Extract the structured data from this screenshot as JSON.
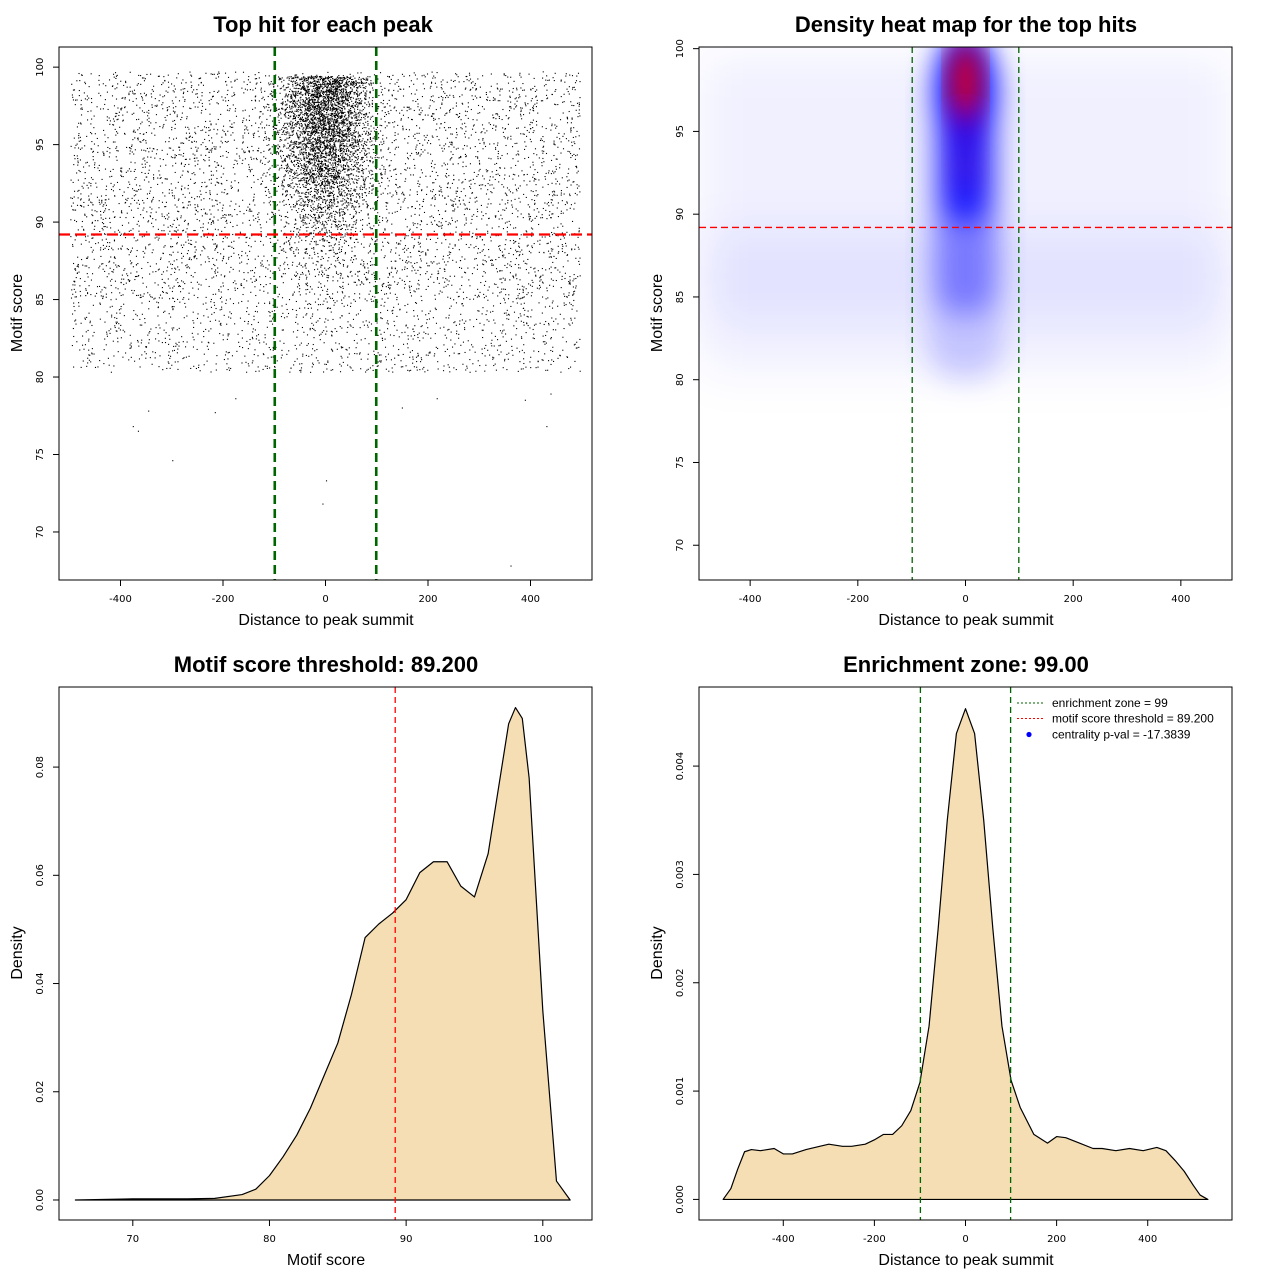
{
  "chart_data": [
    {
      "type": "scatter",
      "title": "Top hit for each peak",
      "xlabel": "Distance to peak summit",
      "ylabel": "Motif score",
      "xlim": [
        -520,
        520
      ],
      "ylim": [
        66.9,
        101.3
      ],
      "xticks": [
        -400,
        -200,
        0,
        200,
        400
      ],
      "xtick_labels": [
        "-400",
        "-200",
        "0",
        "200",
        "400"
      ],
      "yticks": [
        70,
        75,
        80,
        85,
        90,
        95,
        100
      ],
      "ytick_labels": [
        "70",
        "75",
        "80",
        "85",
        "90",
        "95",
        "100"
      ],
      "vlines": [
        -99,
        99
      ],
      "hline": 89.2,
      "vline_color": "#006400",
      "hline_color": "#ff0000",
      "point_color": "#000000",
      "n_points_approx": 9500,
      "outliers": [
        {
          "x": -375,
          "y": 76.8
        },
        {
          "x": -365,
          "y": 76.5
        },
        {
          "x": -345,
          "y": 77.8
        },
        {
          "x": -298,
          "y": 74.6
        },
        {
          "x": -215,
          "y": 77.7
        },
        {
          "x": -175,
          "y": 78.6
        },
        {
          "x": -5,
          "y": 71.8
        },
        {
          "x": 2,
          "y": 73.3
        },
        {
          "x": 150,
          "y": 78.0
        },
        {
          "x": 218,
          "y": 78.6
        },
        {
          "x": 362,
          "y": 67.8
        },
        {
          "x": 390,
          "y": 78.5
        },
        {
          "x": 432,
          "y": 76.8
        },
        {
          "x": 440,
          "y": 78.9
        }
      ]
    },
    {
      "type": "heatmap",
      "title": "Density heat map for the top hits",
      "xlabel": "Distance to peak summit",
      "ylabel": "Motif score",
      "xlim": [
        -495,
        495
      ],
      "ylim": [
        67.9,
        100.1
      ],
      "xticks": [
        -400,
        -200,
        0,
        200,
        400
      ],
      "xtick_labels": [
        "-400",
        "-200",
        "0",
        "200",
        "400"
      ],
      "yticks": [
        70,
        75,
        80,
        85,
        90,
        95,
        100
      ],
      "ytick_labels": [
        "70",
        "75",
        "80",
        "85",
        "90",
        "95",
        "100"
      ],
      "vlines": [
        -99,
        99
      ],
      "hline": 89.2,
      "colors": [
        "#ffffff",
        "#0000ff",
        "#ff0000"
      ],
      "density_peak": {
        "x": 0,
        "y": 98
      }
    },
    {
      "type": "area",
      "title": "Motif score threshold: 89.200",
      "xlabel": "Motif score",
      "ylabel": "Density",
      "xlim": [
        64.6,
        103.6
      ],
      "ylim": [
        -0.0037,
        0.0948
      ],
      "xticks": [
        70,
        80,
        90,
        100
      ],
      "xtick_labels": [
        "70",
        "80",
        "90",
        "100"
      ],
      "yticks": [
        0,
        0.02,
        0.04,
        0.06,
        0.08
      ],
      "ytick_labels": [
        "0.00",
        "0.02",
        "0.04",
        "0.06",
        "0.08"
      ],
      "vline": 89.2,
      "vline_color": "#ff0000",
      "fill": "#f5deb3",
      "x": [
        65.8,
        70,
        74,
        76,
        78,
        79,
        80,
        81,
        82,
        83,
        84,
        85,
        86,
        87,
        88,
        89,
        90,
        91,
        92,
        93,
        94,
        95,
        96,
        97,
        97.5,
        98,
        98.5,
        99,
        100,
        101,
        102
      ],
      "y": [
        0,
        0.0002,
        0.0002,
        0.0003,
        0.001,
        0.002,
        0.0045,
        0.008,
        0.012,
        0.017,
        0.023,
        0.029,
        0.038,
        0.0485,
        0.051,
        0.053,
        0.0555,
        0.0605,
        0.0625,
        0.0625,
        0.058,
        0.056,
        0.064,
        0.08,
        0.088,
        0.091,
        0.089,
        0.078,
        0.035,
        0.0035,
        0
      ]
    },
    {
      "type": "area",
      "title": "Enrichment zone: 99.00",
      "xlabel": "Distance to peak summit",
      "ylabel": "Density",
      "xlim": [
        -585,
        585
      ],
      "ylim": [
        -0.00019,
        0.00473
      ],
      "xticks": [
        -400,
        -200,
        0,
        200,
        400
      ],
      "xtick_labels": [
        "-400",
        "-200",
        "0",
        "200",
        "400"
      ],
      "yticks": [
        0,
        0.001,
        0.002,
        0.003,
        0.004
      ],
      "ytick_labels": [
        "0.000",
        "0.001",
        "0.002",
        "0.003",
        "0.004"
      ],
      "vlines": [
        -99,
        99
      ],
      "fill": "#f5deb3",
      "x": [
        -532,
        -515,
        -500,
        -485,
        -470,
        -450,
        -420,
        -400,
        -380,
        -350,
        -320,
        -300,
        -270,
        -250,
        -220,
        -200,
        -180,
        -160,
        -140,
        -120,
        -100,
        -80,
        -60,
        -40,
        -20,
        0,
        20,
        40,
        60,
        80,
        100,
        120,
        150,
        180,
        200,
        220,
        250,
        280,
        300,
        330,
        360,
        390,
        420,
        440,
        460,
        480,
        500,
        515,
        532
      ],
      "y": [
        0,
        0.0001,
        0.00028,
        0.00044,
        0.00046,
        0.00045,
        0.00047,
        0.00042,
        0.00042,
        0.00046,
        0.00049,
        0.00051,
        0.00049,
        0.00049,
        0.00051,
        0.00055,
        0.0006,
        0.0006,
        0.00068,
        0.00082,
        0.00108,
        0.0016,
        0.0025,
        0.0035,
        0.0043,
        0.00453,
        0.0043,
        0.0035,
        0.0025,
        0.0016,
        0.0011,
        0.00085,
        0.0006,
        0.00052,
        0.00058,
        0.00057,
        0.00052,
        0.00047,
        0.00047,
        0.00045,
        0.00047,
        0.00045,
        0.00048,
        0.00045,
        0.00036,
        0.00026,
        0.00013,
        4e-05,
        0
      ],
      "legend_position": "top-right",
      "legend": [
        {
          "label": "enrichment zone = 99",
          "color": "#006400",
          "style": "dotted"
        },
        {
          "label": "motif score threshold = 89.200",
          "color": "#ff0000",
          "style": "dotted"
        },
        {
          "label": "centrality p-val = -17.3839",
          "color": "#0000ff",
          "style": "point"
        }
      ]
    }
  ]
}
